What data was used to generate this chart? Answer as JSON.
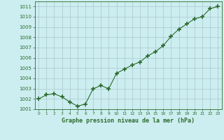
{
  "x": [
    0,
    1,
    2,
    3,
    4,
    5,
    6,
    7,
    8,
    9,
    10,
    11,
    12,
    13,
    14,
    15,
    16,
    17,
    18,
    19,
    20,
    21,
    22,
    23
  ],
  "y": [
    1002.0,
    1002.4,
    1002.5,
    1002.2,
    1001.7,
    1001.3,
    1001.5,
    1003.0,
    1003.3,
    1003.0,
    1004.5,
    1004.9,
    1005.3,
    1005.6,
    1006.2,
    1006.6,
    1007.2,
    1008.1,
    1008.8,
    1009.3,
    1009.8,
    1010.0,
    1010.8,
    1011.0
  ],
  "line_color": "#2d6a2d",
  "marker_color": "#2d6a2d",
  "bg_color": "#cceef0",
  "grid_color": "#b0cdd0",
  "xlabel": "Graphe pression niveau de la mer (hPa)",
  "xlabel_color": "#2d6a2d",
  "tick_color": "#2d6a2d",
  "ylim": [
    1001.0,
    1011.5
  ],
  "yticks": [
    1001,
    1002,
    1003,
    1004,
    1005,
    1006,
    1007,
    1008,
    1009,
    1010,
    1011
  ],
  "xlim": [
    -0.5,
    23.5
  ],
  "xtick_labels": [
    "0",
    "1",
    "2",
    "3",
    "4",
    "5",
    "6",
    "7",
    "8",
    "9",
    "10",
    "11",
    "12",
    "13",
    "14",
    "15",
    "16",
    "17",
    "18",
    "19",
    "20",
    "21",
    "22",
    "23"
  ]
}
